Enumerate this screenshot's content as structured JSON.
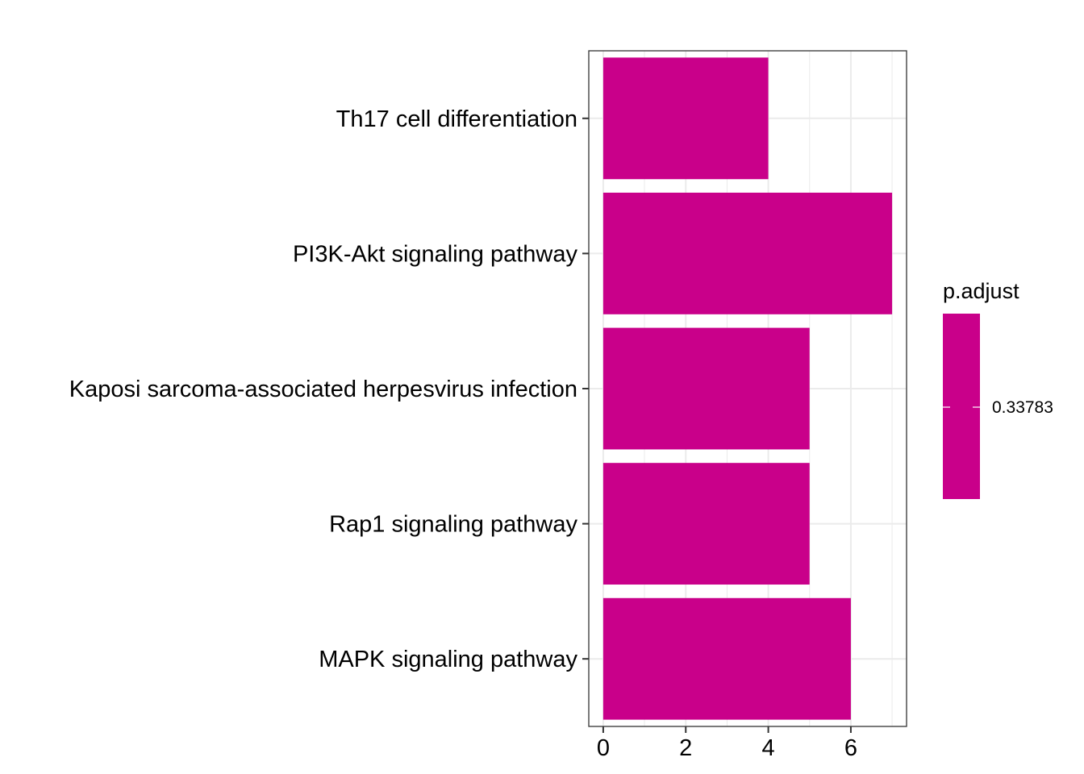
{
  "chart_data": {
    "type": "bar",
    "orientation": "horizontal",
    "categories": [
      "Th17 cell differentiation",
      "PI3K-Akt signaling pathway",
      "Kaposi sarcoma-associated herpesvirus infection",
      "Rap1 signaling pathway",
      "MAPK signaling pathway"
    ],
    "values": [
      4,
      7,
      5,
      5,
      6
    ],
    "xlim": [
      -0.35,
      7.35
    ],
    "xticks": [
      0,
      2,
      4,
      6
    ],
    "xtick_labels": [
      "0",
      "2",
      "4",
      "6"
    ],
    "grid": true,
    "bar_color": "#c9008a",
    "legend": {
      "title": "p.adjust",
      "value_label": "0.33783",
      "placement": "right",
      "color": "#c9008a"
    }
  }
}
